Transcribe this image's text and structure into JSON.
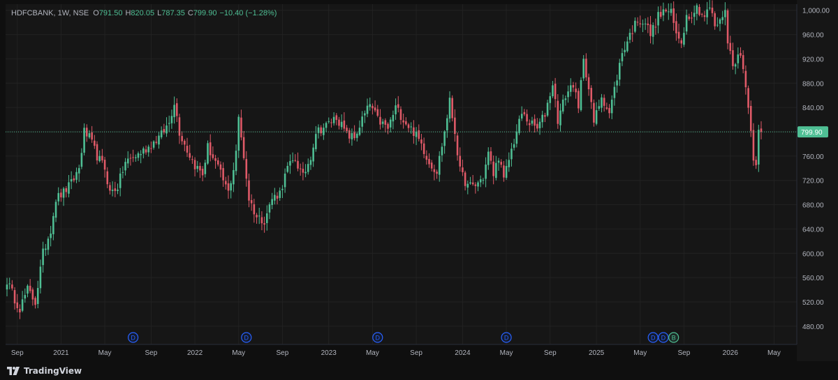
{
  "legend": {
    "symbol": "HDFCBANK, 1W, NSE",
    "open_label": "O",
    "open": "791.50",
    "high_label": "H",
    "high": "820.05",
    "low_label": "L",
    "low": "787.35",
    "close_label": "C",
    "close": "799.90",
    "change": "−10.40 (−1.28%)"
  },
  "brand": {
    "name": "TradingView"
  },
  "colors": {
    "up": "#4fbf94",
    "down": "#e05a68",
    "bg": "#161616",
    "grid": "#222222",
    "text": "#b2b5be",
    "price_tag": "#4fbf94",
    "event_blue": "#2962ff",
    "event_teal": "#4fbf94"
  },
  "chart_data": {
    "type": "candlestick",
    "symbol": "HDFCBANK",
    "interval": "1W",
    "exchange": "NSE",
    "ylim": [
      450,
      1010
    ],
    "y_ticks": [
      "480.00",
      "520.00",
      "560.00",
      "600.00",
      "640.00",
      "680.00",
      "720.00",
      "760.00",
      "800.00",
      "840.00",
      "880.00",
      "920.00",
      "960.00",
      "1,000.00"
    ],
    "y_tick_values": [
      480,
      520,
      560,
      600,
      640,
      680,
      720,
      760,
      800,
      840,
      880,
      920,
      960,
      1000
    ],
    "x_ticks": [
      {
        "label": "Sep",
        "week": 4
      },
      {
        "label": "2021",
        "week": 21
      },
      {
        "label": "May",
        "week": 38
      },
      {
        "label": "Sep",
        "week": 56
      },
      {
        "label": "2022",
        "week": 73
      },
      {
        "label": "May",
        "week": 90
      },
      {
        "label": "Sep",
        "week": 107
      },
      {
        "label": "2023",
        "week": 125
      },
      {
        "label": "May",
        "week": 142
      },
      {
        "label": "Sep",
        "week": 159
      },
      {
        "label": "2024",
        "week": 177
      },
      {
        "label": "May",
        "week": 194
      },
      {
        "label": "Sep",
        "week": 211
      },
      {
        "label": "2025",
        "week": 229
      },
      {
        "label": "May",
        "week": 246
      },
      {
        "label": "Sep",
        "week": 263
      },
      {
        "label": "2026",
        "week": 281
      },
      {
        "label": "May",
        "week": 298
      }
    ],
    "last_price": 799.9,
    "last_price_label": "799.90",
    "events": [
      {
        "label": "D",
        "week": 49
      },
      {
        "label": "D",
        "week": 93
      },
      {
        "label": "D",
        "week": 144
      },
      {
        "label": "D",
        "week": 194
      },
      {
        "label": "D",
        "week": 251
      },
      {
        "label": "D",
        "week": 255
      },
      {
        "label": "B",
        "week": 259
      }
    ],
    "waypoints": [
      [
        0,
        555
      ],
      [
        3,
        525
      ],
      [
        5,
        510
      ],
      [
        8,
        540
      ],
      [
        11,
        520
      ],
      [
        14,
        600
      ],
      [
        17,
        640
      ],
      [
        19,
        690
      ],
      [
        22,
        700
      ],
      [
        25,
        715
      ],
      [
        28,
        740
      ],
      [
        30,
        800
      ],
      [
        32,
        790
      ],
      [
        35,
        760
      ],
      [
        38,
        740
      ],
      [
        40,
        700
      ],
      [
        43,
        710
      ],
      [
        46,
        750
      ],
      [
        50,
        760
      ],
      [
        55,
        775
      ],
      [
        60,
        795
      ],
      [
        63,
        815
      ],
      [
        65,
        850
      ],
      [
        67,
        800
      ],
      [
        70,
        770
      ],
      [
        73,
        745
      ],
      [
        76,
        730
      ],
      [
        78,
        775
      ],
      [
        81,
        750
      ],
      [
        84,
        720
      ],
      [
        86,
        700
      ],
      [
        88,
        740
      ],
      [
        89,
        770
      ],
      [
        90,
        820
      ],
      [
        92,
        760
      ],
      [
        94,
        690
      ],
      [
        97,
        660
      ],
      [
        100,
        655
      ],
      [
        103,
        690
      ],
      [
        106,
        700
      ],
      [
        109,
        740
      ],
      [
        112,
        755
      ],
      [
        115,
        725
      ],
      [
        118,
        760
      ],
      [
        120,
        800
      ],
      [
        124,
        810
      ],
      [
        128,
        825
      ],
      [
        132,
        795
      ],
      [
        135,
        790
      ],
      [
        138,
        820
      ],
      [
        141,
        845
      ],
      [
        144,
        820
      ],
      [
        148,
        805
      ],
      [
        151,
        840
      ],
      [
        155,
        815
      ],
      [
        158,
        800
      ],
      [
        161,
        780
      ],
      [
        164,
        750
      ],
      [
        167,
        735
      ],
      [
        170,
        800
      ],
      [
        172,
        850
      ],
      [
        174,
        800
      ],
      [
        176,
        735
      ],
      [
        179,
        710
      ],
      [
        182,
        712
      ],
      [
        185,
        725
      ],
      [
        187,
        765
      ],
      [
        189,
        730
      ],
      [
        191,
        760
      ],
      [
        193,
        720
      ],
      [
        195,
        755
      ],
      [
        198,
        800
      ],
      [
        200,
        830
      ],
      [
        203,
        815
      ],
      [
        206,
        805
      ],
      [
        209,
        830
      ],
      [
        212,
        880
      ],
      [
        214,
        820
      ],
      [
        217,
        860
      ],
      [
        220,
        880
      ],
      [
        222,
        835
      ],
      [
        224,
        925
      ],
      [
        226,
        870
      ],
      [
        228,
        815
      ],
      [
        231,
        860
      ],
      [
        234,
        830
      ],
      [
        237,
        890
      ],
      [
        239,
        930
      ],
      [
        242,
        960
      ],
      [
        245,
        985
      ],
      [
        248,
        980
      ],
      [
        250,
        960
      ],
      [
        253,
        990
      ],
      [
        256,
        1000
      ],
      [
        258,
        995
      ],
      [
        260,
        960
      ],
      [
        262,
        950
      ],
      [
        264,
        990
      ],
      [
        266,
        995
      ],
      [
        268,
        1005
      ],
      [
        271,
        990
      ],
      [
        273,
        1005
      ],
      [
        275,
        975
      ],
      [
        277,
        980
      ],
      [
        279,
        1005
      ],
      [
        280,
        945
      ],
      [
        282,
        915
      ],
      [
        285,
        925
      ],
      [
        287,
        880
      ],
      [
        289,
        800
      ],
      [
        290,
        760
      ],
      [
        291,
        750
      ],
      [
        292,
        810
      ],
      [
        293,
        800
      ]
    ]
  }
}
